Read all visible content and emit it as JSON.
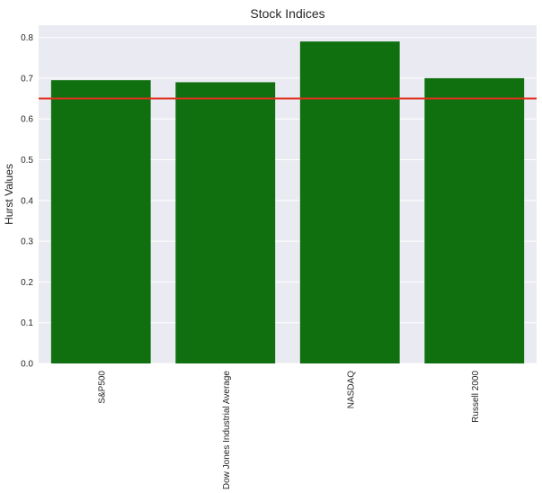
{
  "chart_data": {
    "type": "bar",
    "title": "Stock Indices",
    "xlabel": "",
    "ylabel": "Hurst Values",
    "categories": [
      "S&P500",
      "Dow Jones Industrial Average",
      "NASDAQ",
      "Russell 2000"
    ],
    "values": [
      0.695,
      0.69,
      0.79,
      0.7
    ],
    "ylim": [
      0.0,
      0.83
    ],
    "yticks": [
      0.0,
      0.1,
      0.2,
      0.3,
      0.4,
      0.5,
      0.6,
      0.7,
      0.8
    ],
    "ytick_labels": [
      "0.0",
      "0.1",
      "0.2",
      "0.3",
      "0.4",
      "0.5",
      "0.6",
      "0.7",
      "0.8"
    ],
    "reference_line": {
      "y": 0.65
    },
    "grid": true,
    "colors": {
      "bar": "#107010",
      "reference_line": "#e0301e",
      "plot_background": "#eaeaf2",
      "grid": "#ffffff",
      "text": "#262626"
    }
  }
}
